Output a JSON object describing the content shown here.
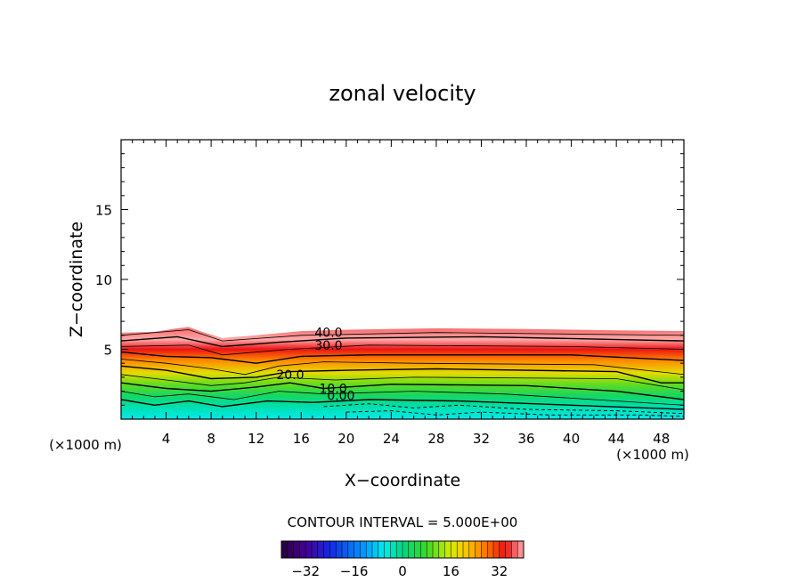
{
  "chart_data": {
    "type": "contour",
    "title": "zonal velocity",
    "xlabel": "X−coordinate",
    "ylabel": "Z−coordinate",
    "x_unit_left": "(×1000 m)",
    "x_unit_right": "(×1000 m)",
    "xlim": [
      0,
      50
    ],
    "ylim": [
      0,
      20
    ],
    "x_ticks": [
      4,
      8,
      12,
      16,
      20,
      24,
      28,
      32,
      36,
      40,
      44,
      48
    ],
    "y_ticks": [
      5,
      10,
      15
    ],
    "contour_labels": [
      {
        "text": "40.0",
        "x": 17.2,
        "z": 6.2
      },
      {
        "text": "30.0",
        "x": 17.2,
        "z": 5.3
      },
      {
        "text": "20.0",
        "x": 13.8,
        "z": 3.2
      },
      {
        "text": "10.0",
        "x": 17.6,
        "z": 2.2
      },
      {
        "text": "0.00",
        "x": 18.3,
        "z": 1.7
      }
    ],
    "contour_interval_text": "CONTOUR INTERVAL = 5.000E+00",
    "contour_interval": 5.0,
    "colorbar": {
      "range": [
        -40,
        40
      ],
      "tick_values": [
        -32,
        -16,
        0,
        16,
        32
      ],
      "tick_labels": [
        "−32",
        "−16",
        "0",
        "16",
        "32"
      ]
    },
    "field_summary": {
      "max_layer_top_z": 6.3,
      "jet_max": 40,
      "surface_min": -6
    }
  }
}
